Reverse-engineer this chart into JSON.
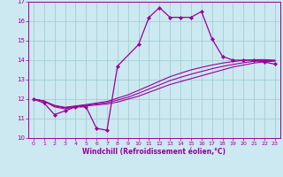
{
  "xlabel": "Windchill (Refroidissement éolien,°C)",
  "bg_color": "#cce8f0",
  "line_color": "#990099",
  "grid_color": "#99cccc",
  "xlim": [
    -0.5,
    23.5
  ],
  "ylim": [
    10,
    17
  ],
  "xticks": [
    0,
    1,
    2,
    3,
    4,
    5,
    6,
    7,
    8,
    9,
    10,
    11,
    12,
    13,
    14,
    15,
    16,
    17,
    18,
    19,
    20,
    21,
    22,
    23
  ],
  "yticks": [
    10,
    11,
    12,
    13,
    14,
    15,
    16,
    17
  ],
  "curve1_x": [
    0,
    1,
    2,
    3,
    4,
    5,
    6,
    7,
    8,
    10,
    11,
    12,
    13,
    14,
    15,
    16,
    17,
    18,
    19,
    20,
    21,
    22,
    23
  ],
  "curve1_y": [
    12.0,
    11.8,
    11.2,
    11.4,
    11.6,
    11.6,
    10.5,
    10.4,
    13.7,
    14.8,
    16.2,
    16.7,
    16.2,
    16.2,
    16.2,
    16.5,
    15.1,
    14.2,
    14.0,
    14.0,
    14.0,
    13.9,
    13.8
  ],
  "curve2_x": [
    0,
    1,
    2,
    3,
    4,
    5,
    6,
    7,
    8,
    9,
    10,
    11,
    12,
    13,
    14,
    15,
    16,
    17,
    18,
    19,
    20,
    21,
    22,
    23
  ],
  "curve2_y": [
    12.0,
    11.9,
    11.6,
    11.5,
    11.6,
    11.65,
    11.7,
    11.75,
    11.85,
    12.0,
    12.15,
    12.35,
    12.55,
    12.75,
    12.9,
    13.05,
    13.2,
    13.35,
    13.5,
    13.65,
    13.75,
    13.85,
    13.92,
    13.95
  ],
  "curve3_x": [
    0,
    1,
    2,
    3,
    4,
    5,
    6,
    7,
    8,
    9,
    10,
    11,
    12,
    13,
    14,
    15,
    16,
    17,
    18,
    19,
    20,
    21,
    22,
    23
  ],
  "curve3_y": [
    12.0,
    11.9,
    11.65,
    11.55,
    11.62,
    11.68,
    11.75,
    11.82,
    11.95,
    12.1,
    12.3,
    12.52,
    12.73,
    12.95,
    13.12,
    13.28,
    13.42,
    13.56,
    13.68,
    13.78,
    13.87,
    13.94,
    13.98,
    13.98
  ],
  "curve4_x": [
    0,
    1,
    2,
    3,
    4,
    5,
    6,
    7,
    8,
    9,
    10,
    11,
    12,
    13,
    14,
    15,
    16,
    17,
    18,
    19,
    20,
    21,
    22,
    23
  ],
  "curve4_y": [
    12.0,
    11.9,
    11.68,
    11.58,
    11.65,
    11.72,
    11.8,
    11.88,
    12.05,
    12.22,
    12.45,
    12.68,
    12.92,
    13.15,
    13.33,
    13.5,
    13.63,
    13.75,
    13.85,
    13.93,
    13.99,
    14.02,
    14.03,
    14.0
  ]
}
